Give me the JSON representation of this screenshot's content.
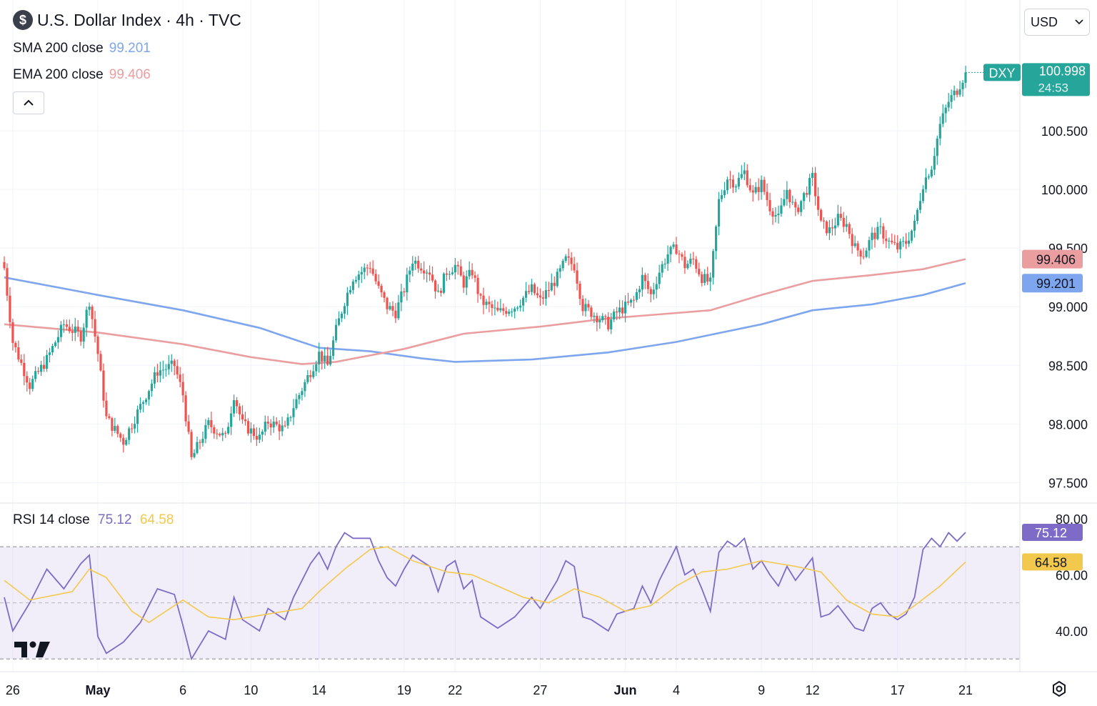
{
  "header": {
    "title": "U.S. Dollar Index · 4h · TVC",
    "coin_symbol": "$",
    "currency": "USD"
  },
  "indicators": [
    {
      "label": "SMA 200 close",
      "value": "99.201",
      "color": "#7ea6ee"
    },
    {
      "label": "EMA 200 close",
      "value": "99.406",
      "color": "#eb9ea0"
    }
  ],
  "rsi": {
    "label": "RSI 14 close",
    "value": "75.12",
    "ma_value": "64.58",
    "color": "#7e6bc8",
    "ma_color": "#f2c94c"
  },
  "chart_data": {
    "type": "candlestick",
    "symbol": "DXY",
    "last_price": "100.998",
    "countdown": "24:53",
    "up_color": "#26a69a",
    "down_color": "#ef5350",
    "y_ticks": [
      "100.500",
      "100.000",
      "99.500",
      "99.000",
      "98.500",
      "98.000",
      "97.500"
    ],
    "y_range": [
      97.35,
      101.25
    ],
    "x_ticks": [
      {
        "label": "26",
        "date": "2025-04-26"
      },
      {
        "label": "May",
        "date": "2025-05-01"
      },
      {
        "label": "6",
        "date": "2025-05-06"
      },
      {
        "label": "10",
        "date": "2025-05-10"
      },
      {
        "label": "14",
        "date": "2025-05-14"
      },
      {
        "label": "19",
        "date": "2025-05-19"
      },
      {
        "label": "22",
        "date": "2025-05-22"
      },
      {
        "label": "27",
        "date": "2025-05-27"
      },
      {
        "label": "Jun",
        "date": "2025-06-01"
      },
      {
        "label": "4",
        "date": "2025-06-04"
      },
      {
        "label": "9",
        "date": "2025-06-09"
      },
      {
        "label": "12",
        "date": "2025-06-12"
      },
      {
        "label": "17",
        "date": "2025-06-17"
      },
      {
        "label": "21",
        "date": "2025-06-21"
      }
    ],
    "price_path": [
      [
        "2025-04-25T12",
        99.33
      ],
      [
        "2025-04-26T00",
        98.7
      ],
      [
        "2025-04-27T00",
        98.33
      ],
      [
        "2025-04-28T00",
        98.55
      ],
      [
        "2025-04-29T00",
        98.85
      ],
      [
        "2025-04-30T00",
        98.75
      ],
      [
        "2025-04-30T12",
        99.05
      ],
      [
        "2025-05-01T00",
        98.6
      ],
      [
        "2025-05-01T12",
        98.05
      ],
      [
        "2025-05-02T00",
        97.95
      ],
      [
        "2025-05-02T12",
        97.85
      ],
      [
        "2025-05-03T12",
        98.15
      ],
      [
        "2025-05-04T12",
        98.45
      ],
      [
        "2025-05-05T12",
        98.5
      ],
      [
        "2025-05-06T00",
        98.25
      ],
      [
        "2025-05-06T12",
        97.7
      ],
      [
        "2025-05-07T12",
        98.0
      ],
      [
        "2025-05-08T12",
        97.88
      ],
      [
        "2025-05-09T00",
        98.25
      ],
      [
        "2025-05-09T12",
        98.0
      ],
      [
        "2025-05-10T12",
        97.88
      ],
      [
        "2025-05-11T00",
        98.02
      ],
      [
        "2025-05-12T00",
        97.95
      ],
      [
        "2025-05-12T12",
        98.15
      ],
      [
        "2025-05-13T00",
        98.3
      ],
      [
        "2025-05-13T12",
        98.45
      ],
      [
        "2025-05-14T00",
        98.6
      ],
      [
        "2025-05-14T12",
        98.5
      ],
      [
        "2025-05-15T00",
        98.8
      ],
      [
        "2025-05-15T12",
        99.05
      ],
      [
        "2025-05-16T00",
        99.25
      ],
      [
        "2025-05-17T00",
        99.35
      ],
      [
        "2025-05-17T12",
        99.15
      ],
      [
        "2025-05-18T00",
        99.0
      ],
      [
        "2025-05-18T12",
        98.95
      ],
      [
        "2025-05-19T00",
        99.15
      ],
      [
        "2025-05-19T12",
        99.4
      ],
      [
        "2025-05-20T12",
        99.3
      ],
      [
        "2025-05-21T00",
        99.1
      ],
      [
        "2025-05-21T12",
        99.3
      ],
      [
        "2025-05-22T00",
        99.35
      ],
      [
        "2025-05-22T12",
        99.2
      ],
      [
        "2025-05-23T00",
        99.3
      ],
      [
        "2025-05-23T12",
        99.05
      ],
      [
        "2025-05-24T12",
        98.95
      ],
      [
        "2025-05-25T12",
        99.0
      ],
      [
        "2025-05-26T12",
        99.15
      ],
      [
        "2025-05-27T00",
        99.05
      ],
      [
        "2025-05-28T00",
        99.25
      ],
      [
        "2025-05-28T12",
        99.4
      ],
      [
        "2025-05-29T00",
        99.35
      ],
      [
        "2025-05-29T12",
        99.0
      ],
      [
        "2025-05-30T00",
        98.95
      ],
      [
        "2025-05-31T00",
        98.85
      ],
      [
        "2025-05-31T12",
        98.95
      ],
      [
        "2025-06-01T12",
        99.05
      ],
      [
        "2025-06-02T00",
        99.25
      ],
      [
        "2025-06-02T12",
        99.1
      ],
      [
        "2025-06-03T00",
        99.3
      ],
      [
        "2025-06-03T12",
        99.45
      ],
      [
        "2025-06-04T00",
        99.5
      ],
      [
        "2025-06-04T12",
        99.35
      ],
      [
        "2025-06-05T00",
        99.4
      ],
      [
        "2025-06-05T12",
        99.25
      ],
      [
        "2025-06-06T00",
        99.2
      ],
      [
        "2025-06-06T12",
        99.9
      ],
      [
        "2025-06-07T00",
        100.1
      ],
      [
        "2025-06-07T12",
        100.05
      ],
      [
        "2025-06-08T00",
        100.15
      ],
      [
        "2025-06-08T12",
        99.95
      ],
      [
        "2025-06-09T00",
        100.05
      ],
      [
        "2025-06-09T12",
        99.85
      ],
      [
        "2025-06-10T00",
        99.75
      ],
      [
        "2025-06-10T12",
        100.0
      ],
      [
        "2025-06-11T00",
        99.8
      ],
      [
        "2025-06-11T12",
        99.95
      ],
      [
        "2025-06-12T00",
        100.1
      ],
      [
        "2025-06-12T12",
        99.7
      ],
      [
        "2025-06-13T00",
        99.65
      ],
      [
        "2025-06-13T12",
        99.75
      ],
      [
        "2025-06-14T00",
        99.7
      ],
      [
        "2025-06-14T12",
        99.5
      ],
      [
        "2025-06-15T00",
        99.45
      ],
      [
        "2025-06-15T12",
        99.6
      ],
      [
        "2025-06-16T00",
        99.65
      ],
      [
        "2025-06-16T12",
        99.55
      ],
      [
        "2025-06-17T00",
        99.5
      ],
      [
        "2025-06-17T12",
        99.55
      ],
      [
        "2025-06-18T00",
        99.7
      ],
      [
        "2025-06-18T12",
        100.05
      ],
      [
        "2025-06-19T00",
        100.2
      ],
      [
        "2025-06-19T12",
        100.55
      ],
      [
        "2025-06-20T00",
        100.75
      ],
      [
        "2025-06-20T12",
        100.85
      ],
      [
        "2025-06-21T00",
        100.998
      ]
    ],
    "sma200_path": [
      [
        "2025-04-25T12",
        99.25
      ],
      [
        "2025-05-01T00",
        99.1
      ],
      [
        "2025-05-06T00",
        98.97
      ],
      [
        "2025-05-10T12",
        98.82
      ],
      [
        "2025-05-14T00",
        98.65
      ],
      [
        "2025-05-17T00",
        98.62
      ],
      [
        "2025-05-20T00",
        98.56
      ],
      [
        "2025-05-22T00",
        98.53
      ],
      [
        "2025-05-26T12",
        98.55
      ],
      [
        "2025-05-31T00",
        98.61
      ],
      [
        "2025-06-04T00",
        98.7
      ],
      [
        "2025-06-09T00",
        98.85
      ],
      [
        "2025-06-12T00",
        98.97
      ],
      [
        "2025-06-15T12",
        99.02
      ],
      [
        "2025-06-18T12",
        99.1
      ],
      [
        "2025-06-21T00",
        99.201
      ]
    ],
    "ema200_path": [
      [
        "2025-04-25T12",
        98.85
      ],
      [
        "2025-05-01T00",
        98.78
      ],
      [
        "2025-05-06T00",
        98.68
      ],
      [
        "2025-05-10T00",
        98.57
      ],
      [
        "2025-05-13T00",
        98.51
      ],
      [
        "2025-05-15T00",
        98.53
      ],
      [
        "2025-05-19T00",
        98.64
      ],
      [
        "2025-05-22T12",
        98.77
      ],
      [
        "2025-05-27T00",
        98.83
      ],
      [
        "2025-05-31T00",
        98.9
      ],
      [
        "2025-06-06T00",
        98.97
      ],
      [
        "2025-06-09T00",
        99.1
      ],
      [
        "2025-06-12T00",
        99.22
      ],
      [
        "2025-06-15T12",
        99.27
      ],
      [
        "2025-06-18T12",
        99.32
      ],
      [
        "2025-06-21T00",
        99.406
      ]
    ],
    "rsi_axis": {
      "ticks": [
        "80.00",
        "60.00",
        "40.00"
      ],
      "range": [
        28,
        82
      ],
      "bands": [
        70,
        50,
        30
      ]
    },
    "rsi_path": [
      [
        "2025-04-25T12",
        52
      ],
      [
        "2025-04-26T00",
        40
      ],
      [
        "2025-04-27T00",
        50
      ],
      [
        "2025-04-28T00",
        62
      ],
      [
        "2025-04-29T00",
        55
      ],
      [
        "2025-04-30T00",
        64
      ],
      [
        "2025-04-30T12",
        67
      ],
      [
        "2025-05-01T00",
        38
      ],
      [
        "2025-05-01T12",
        32
      ],
      [
        "2025-05-02T12",
        36
      ],
      [
        "2025-05-03T12",
        43
      ],
      [
        "2025-05-04T12",
        55
      ],
      [
        "2025-05-05T12",
        53
      ],
      [
        "2025-05-06T00",
        42
      ],
      [
        "2025-05-06T12",
        30
      ],
      [
        "2025-05-07T12",
        40
      ],
      [
        "2025-05-08T12",
        37
      ],
      [
        "2025-05-09T00",
        52
      ],
      [
        "2025-05-09T12",
        44
      ],
      [
        "2025-05-10T12",
        40
      ],
      [
        "2025-05-11T00",
        48
      ],
      [
        "2025-05-12T00",
        44
      ],
      [
        "2025-05-12T12",
        52
      ],
      [
        "2025-05-13T00",
        58
      ],
      [
        "2025-05-13T12",
        64
      ],
      [
        "2025-05-14T00",
        68
      ],
      [
        "2025-05-14T12",
        62
      ],
      [
        "2025-05-15T00",
        70
      ],
      [
        "2025-05-15T12",
        75
      ],
      [
        "2025-05-16T00",
        73
      ],
      [
        "2025-05-17T00",
        73
      ],
      [
        "2025-05-17T12",
        65
      ],
      [
        "2025-05-18T00",
        59
      ],
      [
        "2025-05-18T12",
        56
      ],
      [
        "2025-05-19T00",
        62
      ],
      [
        "2025-05-19T12",
        67
      ],
      [
        "2025-05-20T12",
        63
      ],
      [
        "2025-05-21T00",
        54
      ],
      [
        "2025-05-21T12",
        63
      ],
      [
        "2025-05-22T00",
        65
      ],
      [
        "2025-05-22T12",
        55
      ],
      [
        "2025-05-23T00",
        58
      ],
      [
        "2025-05-23T12",
        45
      ],
      [
        "2025-05-24T12",
        41
      ],
      [
        "2025-05-25T12",
        45
      ],
      [
        "2025-05-26T12",
        52
      ],
      [
        "2025-05-27T00",
        48
      ],
      [
        "2025-05-28T00",
        58
      ],
      [
        "2025-05-28T12",
        65
      ],
      [
        "2025-05-29T00",
        63
      ],
      [
        "2025-05-29T12",
        45
      ],
      [
        "2025-05-30T00",
        44
      ],
      [
        "2025-05-31T00",
        40
      ],
      [
        "2025-05-31T12",
        46
      ],
      [
        "2025-06-01T12",
        48
      ],
      [
        "2025-06-02T00",
        56
      ],
      [
        "2025-06-02T12",
        50
      ],
      [
        "2025-06-03T00",
        58
      ],
      [
        "2025-06-03T12",
        64
      ],
      [
        "2025-06-04T00",
        70
      ],
      [
        "2025-06-04T12",
        60
      ],
      [
        "2025-06-05T00",
        62
      ],
      [
        "2025-06-05T12",
        55
      ],
      [
        "2025-06-06T00",
        47
      ],
      [
        "2025-06-06T12",
        68
      ],
      [
        "2025-06-07T00",
        72
      ],
      [
        "2025-06-07T12",
        70
      ],
      [
        "2025-06-08T00",
        73
      ],
      [
        "2025-06-08T12",
        62
      ],
      [
        "2025-06-09T00",
        65
      ],
      [
        "2025-06-09T12",
        60
      ],
      [
        "2025-06-10T00",
        56
      ],
      [
        "2025-06-10T12",
        63
      ],
      [
        "2025-06-11T00",
        58
      ],
      [
        "2025-06-11T12",
        62
      ],
      [
        "2025-06-12T00",
        66
      ],
      [
        "2025-06-12T12",
        45
      ],
      [
        "2025-06-13T00",
        46
      ],
      [
        "2025-06-13T12",
        49
      ],
      [
        "2025-06-14T00",
        45
      ],
      [
        "2025-06-14T12",
        41
      ],
      [
        "2025-06-15T00",
        40
      ],
      [
        "2025-06-15T12",
        48
      ],
      [
        "2025-06-16T00",
        50
      ],
      [
        "2025-06-16T12",
        46
      ],
      [
        "2025-06-17T00",
        44
      ],
      [
        "2025-06-17T12",
        46
      ],
      [
        "2025-06-18T00",
        52
      ],
      [
        "2025-06-18T12",
        69
      ],
      [
        "2025-06-19T00",
        73
      ],
      [
        "2025-06-19T12",
        70
      ],
      [
        "2025-06-20T00",
        75
      ],
      [
        "2025-06-20T12",
        72
      ],
      [
        "2025-06-21T00",
        75.12
      ]
    ],
    "rsi_ma_path": [
      [
        "2025-04-25T12",
        58
      ],
      [
        "2025-04-27T00",
        51
      ],
      [
        "2025-04-29T12",
        54
      ],
      [
        "2025-04-30T12",
        62
      ],
      [
        "2025-05-01T12",
        59
      ],
      [
        "2025-05-03T00",
        47
      ],
      [
        "2025-05-04T00",
        43
      ],
      [
        "2025-05-06T00",
        51
      ],
      [
        "2025-05-07T12",
        45
      ],
      [
        "2025-05-09T00",
        44
      ],
      [
        "2025-05-11T00",
        46
      ],
      [
        "2025-05-13T00",
        48
      ],
      [
        "2025-05-14T00",
        54
      ],
      [
        "2025-05-15T12",
        62
      ],
      [
        "2025-05-17T00",
        69
      ],
      [
        "2025-05-18T00",
        70
      ],
      [
        "2025-05-19T12",
        65
      ],
      [
        "2025-05-21T12",
        61
      ],
      [
        "2025-05-23T00",
        60
      ],
      [
        "2025-05-24T12",
        56
      ],
      [
        "2025-05-26T00",
        52
      ],
      [
        "2025-05-27T12",
        50
      ],
      [
        "2025-05-29T00",
        55
      ],
      [
        "2025-05-30T12",
        52
      ],
      [
        "2025-06-01T00",
        47
      ],
      [
        "2025-06-02T12",
        49
      ],
      [
        "2025-06-04T00",
        56
      ],
      [
        "2025-06-05T12",
        61
      ],
      [
        "2025-06-07T00",
        62
      ],
      [
        "2025-06-09T00",
        65
      ],
      [
        "2025-06-11T00",
        63
      ],
      [
        "2025-06-12T12",
        61
      ],
      [
        "2025-06-14T00",
        51
      ],
      [
        "2025-06-15T12",
        46
      ],
      [
        "2025-06-17T00",
        45
      ],
      [
        "2025-06-18T00",
        49
      ],
      [
        "2025-06-19T12",
        56
      ],
      [
        "2025-06-21T00",
        64.58
      ]
    ]
  }
}
